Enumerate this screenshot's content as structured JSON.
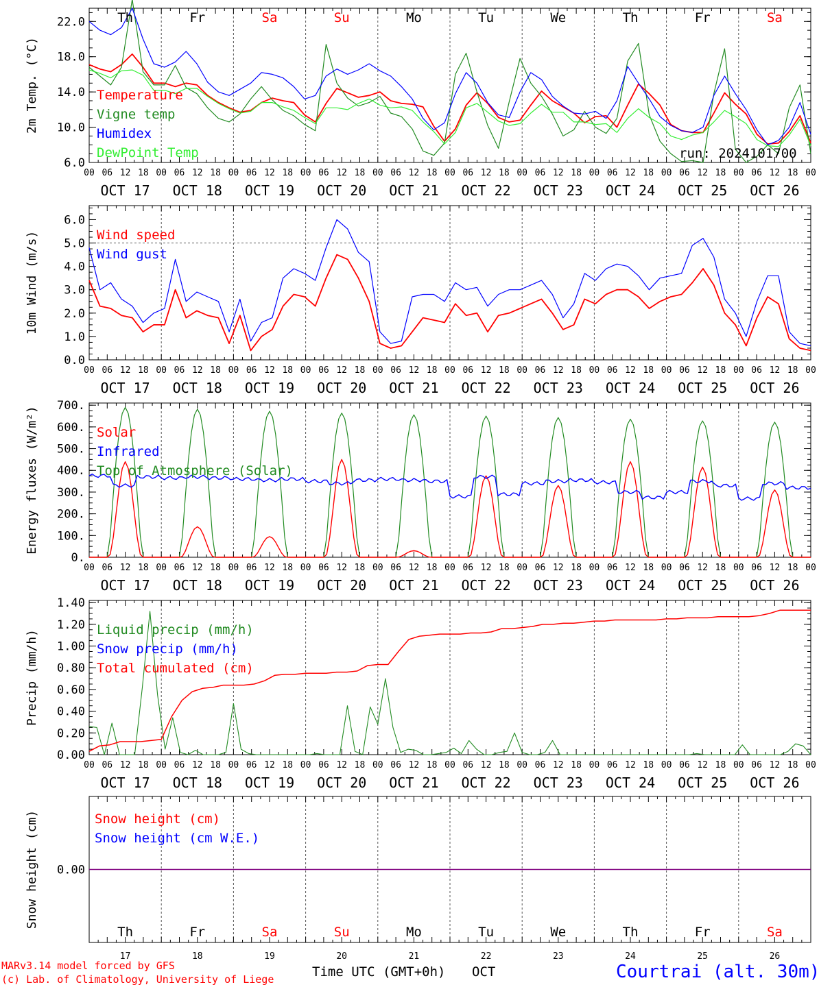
{
  "run_label": "run: 2024101700",
  "footer": {
    "model_line1": "MARv3.14 model forced by GFS",
    "model_line2": "(c) Lab. of Climatology, University of Liege",
    "axis_title": "Time UTC (GMT+0h)",
    "month": "OCT",
    "station": "Courtrai (alt. 30m)"
  },
  "colors": {
    "red": "#ff0000",
    "green": "#228b22",
    "blue": "#0000ff",
    "lightgreen": "#33ee33",
    "purple": "#800080"
  },
  "days": [
    "Th",
    "Fr",
    "Sa",
    "Su",
    "Mo",
    "Tu",
    "We",
    "Th",
    "Fr",
    "Sa"
  ],
  "weekend_day_indices": [
    2,
    3,
    9
  ],
  "date_labels": [
    "OCT 17",
    "OCT 18",
    "OCT 19",
    "OCT 20",
    "OCT 21",
    "OCT 22",
    "OCT 23",
    "OCT 24",
    "OCT 25",
    "OCT 26"
  ],
  "bottom_day_numbers": [
    "17",
    "18",
    "19",
    "20",
    "21",
    "22",
    "23",
    "24",
    "25",
    "26"
  ],
  "hour_ticks": [
    "00",
    "06",
    "12",
    "18"
  ],
  "hour_end": "00",
  "chart_data": [
    {
      "type": "line",
      "ylabel": "2m Temp. (°C)",
      "ylim": [
        6,
        23.5
      ],
      "yticks": [
        6,
        10,
        14,
        18,
        22
      ],
      "ytick_labels": [
        "6.0",
        "10.0",
        "14.0",
        "18.0",
        "22.0"
      ],
      "x_hours_step": 6,
      "legend": [
        "Temperature",
        "Vigne temp",
        "Humidex",
        "DewPoint Temp"
      ],
      "series": [
        {
          "name": "Temperature",
          "color": "red",
          "values": [
            17.1,
            16.6,
            16.3,
            17.1,
            18.3,
            16.8,
            15.0,
            15.0,
            14.6,
            15.0,
            14.8,
            13.6,
            12.8,
            12.2,
            11.7,
            11.9,
            12.8,
            13.3,
            13.0,
            12.8,
            11.4,
            10.6,
            12.7,
            14.4,
            13.9,
            13.4,
            13.6,
            14.0,
            13.0,
            12.7,
            12.6,
            12.3,
            10.1,
            8.4,
            9.8,
            12.5,
            13.9,
            12.7,
            11.1,
            10.6,
            10.8,
            12.5,
            14.1,
            13.0,
            12.3,
            11.6,
            10.5,
            11.2,
            11.3,
            10.0,
            12.5,
            14.9,
            13.8,
            12.5,
            10.3,
            9.6,
            9.4,
            9.4,
            11.6,
            13.9,
            12.6,
            11.5,
            9.2,
            8.1,
            8.2,
            9.5,
            11.3,
            8.2
          ]
        },
        {
          "name": "Vigne temp",
          "color": "green",
          "values": [
            16.8,
            15.8,
            14.8,
            16.8,
            24.5,
            16.3,
            14.8,
            14.8,
            17.0,
            14.5,
            13.8,
            12.2,
            11.0,
            10.6,
            11.5,
            13.2,
            14.6,
            13.1,
            11.9,
            11.3,
            10.3,
            9.6,
            19.4,
            15.0,
            13.3,
            12.4,
            12.8,
            13.5,
            11.6,
            11.2,
            9.8,
            7.3,
            6.8,
            8.2,
            16.0,
            18.4,
            14.0,
            10.2,
            7.6,
            12.9,
            17.8,
            15.0,
            13.5,
            11.5,
            9.0,
            9.7,
            11.8,
            10.0,
            9.3,
            11.0,
            17.5,
            19.5,
            11.4,
            8.4,
            7.0,
            6.1,
            6.2,
            6.0,
            13.8,
            18.9,
            7.5,
            6.0,
            6.7,
            8.0,
            7.0,
            12.2,
            14.8,
            7.0
          ]
        },
        {
          "name": "Humidex",
          "color": "blue",
          "values": [
            22.0,
            21.0,
            20.5,
            21.3,
            23.5,
            20.0,
            17.2,
            16.8,
            17.4,
            18.6,
            17.2,
            15.1,
            14.0,
            13.6,
            14.3,
            15.0,
            16.2,
            16.0,
            15.6,
            14.6,
            13.2,
            13.6,
            15.8,
            16.6,
            16.0,
            16.5,
            17.2,
            16.4,
            15.8,
            14.6,
            13.2,
            11.0,
            9.7,
            10.5,
            13.8,
            16.2,
            15.0,
            12.8,
            11.4,
            11.1,
            14.0,
            16.2,
            15.4,
            13.5,
            12.4,
            11.6,
            11.5,
            11.8,
            11.0,
            13.0,
            16.9,
            15.0,
            13.2,
            11.2,
            10.2,
            9.6,
            9.4,
            10.0,
            13.6,
            15.8,
            13.8,
            12.0,
            9.7,
            8.0,
            8.5,
            10.0,
            12.8,
            9.2
          ]
        },
        {
          "name": "DewPoint Temp",
          "color": "lightgreen",
          "values": [
            16.5,
            16.1,
            15.6,
            16.4,
            16.5,
            15.9,
            14.2,
            14.2,
            13.8,
            14.4,
            14.4,
            13.5,
            12.7,
            12.1,
            11.6,
            11.8,
            12.8,
            12.8,
            12.3,
            11.9,
            11.1,
            10.4,
            12.2,
            12.2,
            12.0,
            12.7,
            13.2,
            12.5,
            12.2,
            12.3,
            11.9,
            10.6,
            9.5,
            8.1,
            9.4,
            12.2,
            12.7,
            11.7,
            10.7,
            10.2,
            10.4,
            11.6,
            12.6,
            11.7,
            11.7,
            10.6,
            10.6,
            10.3,
            10.4,
            9.4,
            11.0,
            12.1,
            11.1,
            10.4,
            9.0,
            8.6,
            9.1,
            9.4,
            10.6,
            11.9,
            11.2,
            10.4,
            8.6,
            7.9,
            7.8,
            9.1,
            10.9,
            7.9
          ]
        }
      ]
    },
    {
      "type": "line",
      "ylabel": "10m Wind (m/s)",
      "ylim": [
        0,
        6.6
      ],
      "yticks": [
        0,
        1,
        2,
        3,
        4,
        5,
        6
      ],
      "ytick_labels": [
        "0.0",
        "1.0",
        "2.0",
        "3.0",
        "4.0",
        "5.0",
        "6.0"
      ],
      "reference_line": 5.0,
      "x_hours_step": 6,
      "legend": [
        "Wind speed",
        "Wind gust"
      ],
      "series": [
        {
          "name": "Wind speed",
          "color": "red",
          "values": [
            3.4,
            2.3,
            2.2,
            1.9,
            1.8,
            1.2,
            1.5,
            1.5,
            3.0,
            1.8,
            2.1,
            1.9,
            1.8,
            0.7,
            1.9,
            0.4,
            1.0,
            1.3,
            2.3,
            2.8,
            2.7,
            2.3,
            3.5,
            4.5,
            4.3,
            3.5,
            2.5,
            0.7,
            0.5,
            0.6,
            1.2,
            1.8,
            1.7,
            1.6,
            2.4,
            1.9,
            2.0,
            1.2,
            1.9,
            2.0,
            2.2,
            2.4,
            2.6,
            2.0,
            1.3,
            1.5,
            2.6,
            2.4,
            2.8,
            3.0,
            3.0,
            2.7,
            2.2,
            2.5,
            2.7,
            2.8,
            3.3,
            3.9,
            3.2,
            2.0,
            1.5,
            0.6,
            1.8,
            2.7,
            2.4,
            0.9,
            0.5,
            0.4
          ]
        },
        {
          "name": "Wind gust",
          "color": "blue",
          "values": [
            4.8,
            3.0,
            3.3,
            2.6,
            2.3,
            1.6,
            2.0,
            2.2,
            4.3,
            2.5,
            2.9,
            2.7,
            2.5,
            1.2,
            2.6,
            0.8,
            1.6,
            1.8,
            3.5,
            3.9,
            3.7,
            3.4,
            4.8,
            6.0,
            5.6,
            4.6,
            4.2,
            1.2,
            0.7,
            0.8,
            2.7,
            2.8,
            2.8,
            2.5,
            3.3,
            3.0,
            3.1,
            2.3,
            2.8,
            3.0,
            3.0,
            3.2,
            3.4,
            2.8,
            1.8,
            2.4,
            3.7,
            3.4,
            3.9,
            4.1,
            4.0,
            3.6,
            3.0,
            3.5,
            3.6,
            3.7,
            4.9,
            5.2,
            4.4,
            2.6,
            2.0,
            1.0,
            2.5,
            3.6,
            3.6,
            1.2,
            0.7,
            0.6
          ]
        }
      ]
    },
    {
      "type": "line",
      "ylabel": "Energy fluxes (W/m²)",
      "ylim": [
        0,
        710
      ],
      "yticks": [
        0,
        100,
        200,
        300,
        400,
        500,
        600,
        700
      ],
      "ytick_labels": [
        "0.",
        "100.",
        "200.",
        "300.",
        "400.",
        "500.",
        "600.",
        "700."
      ],
      "x_hours_step": 1,
      "legend": [
        "Solar",
        "Infrared",
        "Top of Atmosphere (Solar)"
      ],
      "daily_profiles": {
        "toa_peak": [
          690,
          682,
          672,
          664,
          656,
          650,
          643,
          636,
          628,
          622
        ],
        "solar_peak": [
          440,
          140,
          95,
          450,
          30,
          375,
          330,
          440,
          415,
          310
        ],
        "infrared_day_values": [
          [
            375,
            330,
            370
          ],
          [
            365,
            370,
            365
          ],
          [
            360,
            355,
            360
          ],
          [
            350,
            340,
            355
          ],
          [
            360,
            355,
            350
          ],
          [
            280,
            370,
            290
          ],
          [
            340,
            350,
            355
          ],
          [
            345,
            300,
            275
          ],
          [
            300,
            350,
            330
          ],
          [
            270,
            340,
            320
          ]
        ]
      },
      "series": [
        {
          "name": "Solar",
          "color": "red"
        },
        {
          "name": "Infrared",
          "color": "blue"
        },
        {
          "name": "Top of Atmosphere (Solar)",
          "color": "green"
        }
      ]
    },
    {
      "type": "line",
      "ylabel": "Precip (mm/h)",
      "ylim": [
        0,
        1.42
      ],
      "yticks": [
        0,
        0.2,
        0.4,
        0.6,
        0.8,
        1.0,
        1.2,
        1.4
      ],
      "ytick_labels": [
        "0.00",
        "0.20",
        "0.40",
        "0.60",
        "0.80",
        "1.00",
        "1.20",
        "1.40"
      ],
      "x_hours_step": 6,
      "legend": [
        "Liquid precip (mm/h)",
        "Snow precip (mm/h)",
        "Total cumulated (cm)"
      ],
      "series": [
        {
          "name": "Liquid precip (mm/h)",
          "color": "green",
          "values": [
            0.26,
            0.25,
            0.0,
            0.29,
            0.0,
            0.0,
            0.0,
            0.62,
            1.32,
            0.55,
            0.05,
            0.34,
            0.02,
            0.0,
            0.04,
            0.0,
            0.0,
            0.0,
            0.02,
            0.47,
            0.05,
            0.01,
            0.0,
            0.0,
            0.0,
            0.0,
            0.0,
            0.0,
            0.0,
            0.0,
            0.01,
            0.0,
            0.0,
            0.0,
            0.45,
            0.03,
            0.0,
            0.44,
            0.28,
            0.7,
            0.25,
            0.02,
            0.05,
            0.04,
            0.0,
            0.0,
            0.01,
            0.02,
            0.06,
            0.01,
            0.13,
            0.05,
            0.0,
            0.0,
            0.02,
            0.03,
            0.2,
            0.02,
            0.0,
            0.0,
            0.02,
            0.13,
            0.0,
            0.0,
            0.0,
            0.0,
            0.0,
            0.0,
            0.0,
            0.0,
            0.0,
            0.0,
            0.0,
            0.0,
            0.0,
            0.0,
            0.0,
            0.0,
            0.0,
            0.0,
            0.01,
            0.0,
            0.0,
            0.0,
            0.0,
            0.0,
            0.09,
            0.0,
            0.0,
            0.0,
            0.0,
            0.0,
            0.03,
            0.1,
            0.08,
            0.0
          ]
        },
        {
          "name": "Snow precip (mm/h)",
          "color": "blue",
          "values": []
        },
        {
          "name": "Total cumulated (cm)",
          "color": "red",
          "values": [
            0.03,
            0.08,
            0.09,
            0.12,
            0.12,
            0.12,
            0.13,
            0.14,
            0.35,
            0.5,
            0.58,
            0.61,
            0.62,
            0.64,
            0.64,
            0.64,
            0.65,
            0.68,
            0.73,
            0.74,
            0.74,
            0.75,
            0.75,
            0.75,
            0.76,
            0.76,
            0.77,
            0.82,
            0.83,
            0.83,
            0.95,
            1.06,
            1.09,
            1.1,
            1.11,
            1.11,
            1.11,
            1.12,
            1.12,
            1.13,
            1.16,
            1.16,
            1.17,
            1.18,
            1.2,
            1.2,
            1.21,
            1.21,
            1.22,
            1.23,
            1.23,
            1.24,
            1.24,
            1.24,
            1.24,
            1.24,
            1.25,
            1.25,
            1.26,
            1.26,
            1.26,
            1.27,
            1.27,
            1.27,
            1.27,
            1.28,
            1.3,
            1.33,
            1.33,
            1.33,
            1.33
          ]
        }
      ]
    },
    {
      "type": "line",
      "ylabel": "Snow height (cm)",
      "ylim": [
        -1,
        1
      ],
      "yticks": [
        0
      ],
      "ytick_labels": [
        "0.00"
      ],
      "x_hours_step": 6,
      "legend": [
        "Snow height (cm)",
        "Snow height (cm W.E.)"
      ],
      "series": [
        {
          "name": "Snow height (cm)",
          "color": "red",
          "values": [
            0,
            0
          ]
        },
        {
          "name": "Snow height (cm W.E.)",
          "color": "blue",
          "values": [
            0,
            0
          ]
        }
      ]
    }
  ]
}
